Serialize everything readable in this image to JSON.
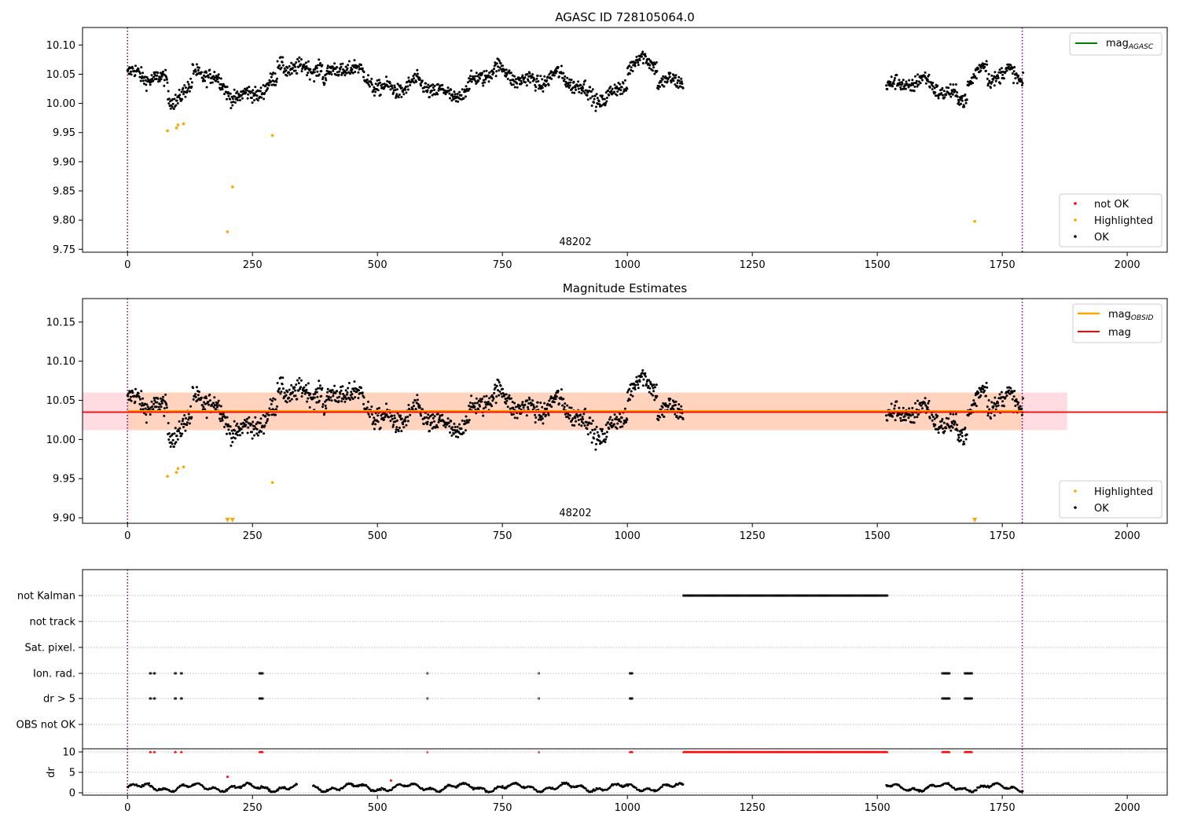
{
  "chart_data": [
    {
      "type": "scatter",
      "title": "AGASC ID 728105064.0",
      "annotation": "48202",
      "xlim": [
        -90,
        2080
      ],
      "ylim": [
        9.745,
        10.13
      ],
      "x_ticks": [
        0,
        250,
        500,
        750,
        1000,
        1250,
        1500,
        1750,
        2000
      ],
      "y_ticks": [
        9.75,
        9.8,
        9.85,
        9.9,
        9.95,
        10.0,
        10.05,
        10.1
      ],
      "y_tick_labels": [
        "9.75",
        "9.80",
        "9.85",
        "9.90",
        "9.95",
        "10.00",
        "10.05",
        "10.10"
      ],
      "vlines": [
        0,
        1790
      ],
      "legend_upper": {
        "placement": "top-right",
        "entries": [
          {
            "label": "mag",
            "sub": "AGASC",
            "color": "#008000"
          }
        ]
      },
      "legend_lower": {
        "placement": "bottom-right",
        "entries": [
          {
            "label": "not OK",
            "color": "#ff0000"
          },
          {
            "label": "Highlighted",
            "color": "#ffa500"
          },
          {
            "label": "OK",
            "color": "#000000"
          }
        ]
      },
      "highlighted": [
        [
          80,
          9.953
        ],
        [
          98,
          9.958
        ],
        [
          101,
          9.963
        ],
        [
          112,
          9.965
        ],
        [
          200,
          9.78
        ],
        [
          210,
          9.857
        ],
        [
          290,
          9.945
        ],
        [
          1695,
          9.798
        ]
      ]
    },
    {
      "type": "scatter",
      "title": "Magnitude Estimates",
      "annotation": "48202",
      "xlim": [
        -90,
        2080
      ],
      "ylim": [
        9.893,
        10.18
      ],
      "x_ticks": [
        0,
        250,
        500,
        750,
        1000,
        1250,
        1500,
        1750,
        2000
      ],
      "y_ticks": [
        9.9,
        9.95,
        10.0,
        10.05,
        10.1,
        10.15
      ],
      "y_tick_labels": [
        "9.90",
        "9.95",
        "10.00",
        "10.05",
        "10.10",
        "10.15"
      ],
      "vlines": [
        0,
        1790
      ],
      "mag_line": {
        "value": 10.035,
        "x": [
          -90,
          2080
        ],
        "color": "#ff0000"
      },
      "mag_band": {
        "low": 10.012,
        "high": 10.06,
        "x": [
          -90,
          1880
        ],
        "color": "#ffc0cb"
      },
      "obsid_line": {
        "value": 10.036,
        "x": [
          0,
          1790
        ],
        "color": "#ffa500"
      },
      "obsid_band": {
        "low": 10.012,
        "high": 10.06,
        "x": [
          0,
          1790
        ],
        "color": "#ffd0b0"
      },
      "legend_upper": {
        "placement": "top-right",
        "entries": [
          {
            "label": "mag",
            "sub": "OBSID",
            "color": "#ffa500"
          },
          {
            "label": "mag",
            "sub": "",
            "color": "#ff0000"
          }
        ]
      },
      "legend_lower": {
        "placement": "bottom-right",
        "entries": [
          {
            "label": "Highlighted",
            "color": "#ffa500"
          },
          {
            "label": "OK",
            "color": "#000000"
          }
        ]
      },
      "highlighted": [
        [
          80,
          9.953
        ],
        [
          98,
          9.958
        ],
        [
          101,
          9.963
        ],
        [
          112,
          9.965
        ],
        [
          290,
          9.945
        ]
      ],
      "below_range_markers": [
        200,
        210,
        1695
      ]
    },
    {
      "type": "scatter",
      "title": "",
      "xlim": [
        -90,
        2080
      ],
      "x_ticks": [
        0,
        250,
        500,
        750,
        1000,
        1250,
        1500,
        1750,
        2000
      ],
      "vlines": [
        0,
        1790
      ],
      "flag_rows": [
        "not Kalman",
        "not track",
        "Sat. pixel.",
        "Ion. rad.",
        "dr > 5",
        "OBS not OK"
      ],
      "flags": {
        "not Kalman": [
          [
            1112,
            1520
          ]
        ],
        "not track": [],
        "Sat. pixel.": [],
        "Ion. rad.": [
          [
            45,
            47
          ],
          [
            53,
            55
          ],
          [
            95,
            97
          ],
          [
            107,
            109
          ],
          [
            264,
            272
          ],
          [
            600,
            601
          ],
          [
            823,
            824
          ],
          [
            1005,
            1010
          ],
          [
            1630,
            1645
          ],
          [
            1675,
            1690
          ]
        ],
        "dr > 5": [
          [
            45,
            47
          ],
          [
            53,
            55
          ],
          [
            95,
            97
          ],
          [
            107,
            109
          ],
          [
            264,
            272
          ],
          [
            600,
            601
          ],
          [
            823,
            824
          ],
          [
            1005,
            1010
          ],
          [
            1630,
            1645
          ],
          [
            1675,
            1690
          ]
        ],
        "OBS not OK": []
      },
      "dr_label": "dr",
      "dr_ylim": [
        -0.5,
        10.8
      ],
      "dr_ticks": [
        0,
        5,
        10
      ],
      "dr_tick_labels": [
        "0",
        "5",
        "10"
      ],
      "dr_clip": 10,
      "dr_clipped": [
        [
          45,
          47
        ],
        [
          53,
          55
        ],
        [
          95,
          97
        ],
        [
          107,
          109
        ],
        [
          264,
          272
        ],
        [
          600,
          601
        ],
        [
          823,
          824
        ],
        [
          1005,
          1010
        ],
        [
          1112,
          1520
        ],
        [
          1630,
          1645
        ],
        [
          1675,
          1690
        ]
      ],
      "dr_red_points": [
        [
          200,
          3.9
        ],
        [
          527,
          3.0
        ]
      ],
      "dr_gap": [
        1112,
        1518
      ]
    }
  ]
}
